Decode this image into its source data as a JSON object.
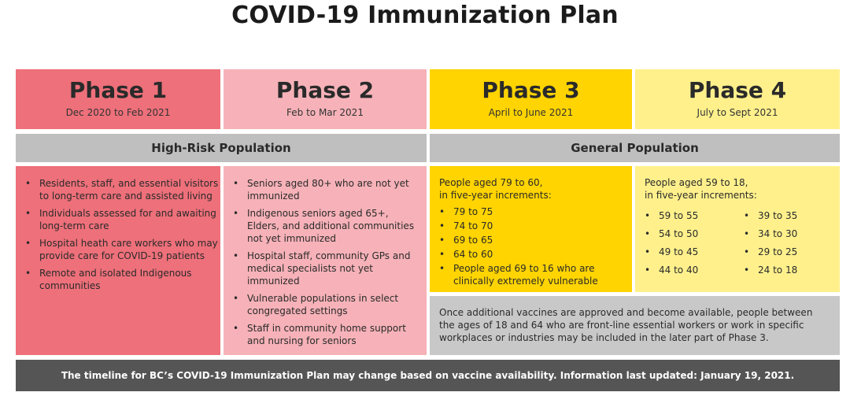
{
  "title": "COVID-19 Immunization Plan",
  "phases": [
    {
      "name": "Phase 1",
      "dates": "Dec 2020 to Feb 2021"
    },
    {
      "name": "Phase 2",
      "dates": "Feb to Mar 2021"
    },
    {
      "name": "Phase 3",
      "dates": "April to June 2021"
    },
    {
      "name": "Phase 4",
      "dates": "July to Sept 2021"
    }
  ],
  "bands": {
    "high_risk": "High-Risk Population",
    "general": "General Population"
  },
  "phase1_items": [
    "Residents, staff, and essential visitors to long-term care and assisted living",
    "Individuals assessed for and awaiting long-term care",
    "Hospital heath care workers who may provide care for COVID-19 patients",
    "Remote and isolated Indigenous communities"
  ],
  "phase2_items": [
    "Seniors aged 80+ who are not yet immunized",
    "Indigenous seniors aged 65+, Elders, and additional communities not yet immunized",
    "Hospital staff, community GPs and medical specialists not yet immunized",
    "Vulnerable populations in select congregated settings",
    "Staff in community home support and nursing for seniors"
  ],
  "phase3": {
    "intro_line1": "People aged 79 to 60,",
    "intro_line2": "in five-year increments:",
    "items": [
      "79 to 75",
      "74 to 70",
      "69 to 65",
      "64 to 60",
      "People aged 69 to 16 who are clinically extremely vulnerable"
    ]
  },
  "phase4": {
    "intro_line1": "People aged 59 to 18,",
    "intro_line2": "in five-year increments:",
    "col1": [
      "59 to 55",
      "54 to 50",
      "49 to 45",
      "44 to 40"
    ],
    "col2": [
      "39 to 35",
      "34 to 30",
      "29 to 25",
      "24 to 18"
    ]
  },
  "note": "Once additional vaccines are approved and become available, people between the ages of 18 and 64 who are front-line essential workers or work in specific workplaces or industries may be included in the later part of Phase 3.",
  "footer": "The timeline for BC’s COVID-19 Immunization Plan may change based on vaccine availability. Information last updated: January 19, 2021.",
  "colors": {
    "phase1": "#ee707a",
    "phase2": "#f6b2b8",
    "phase3": "#ffd400",
    "phase4": "#fff08c",
    "band": "#bfbfbf",
    "footer": "#555555"
  }
}
